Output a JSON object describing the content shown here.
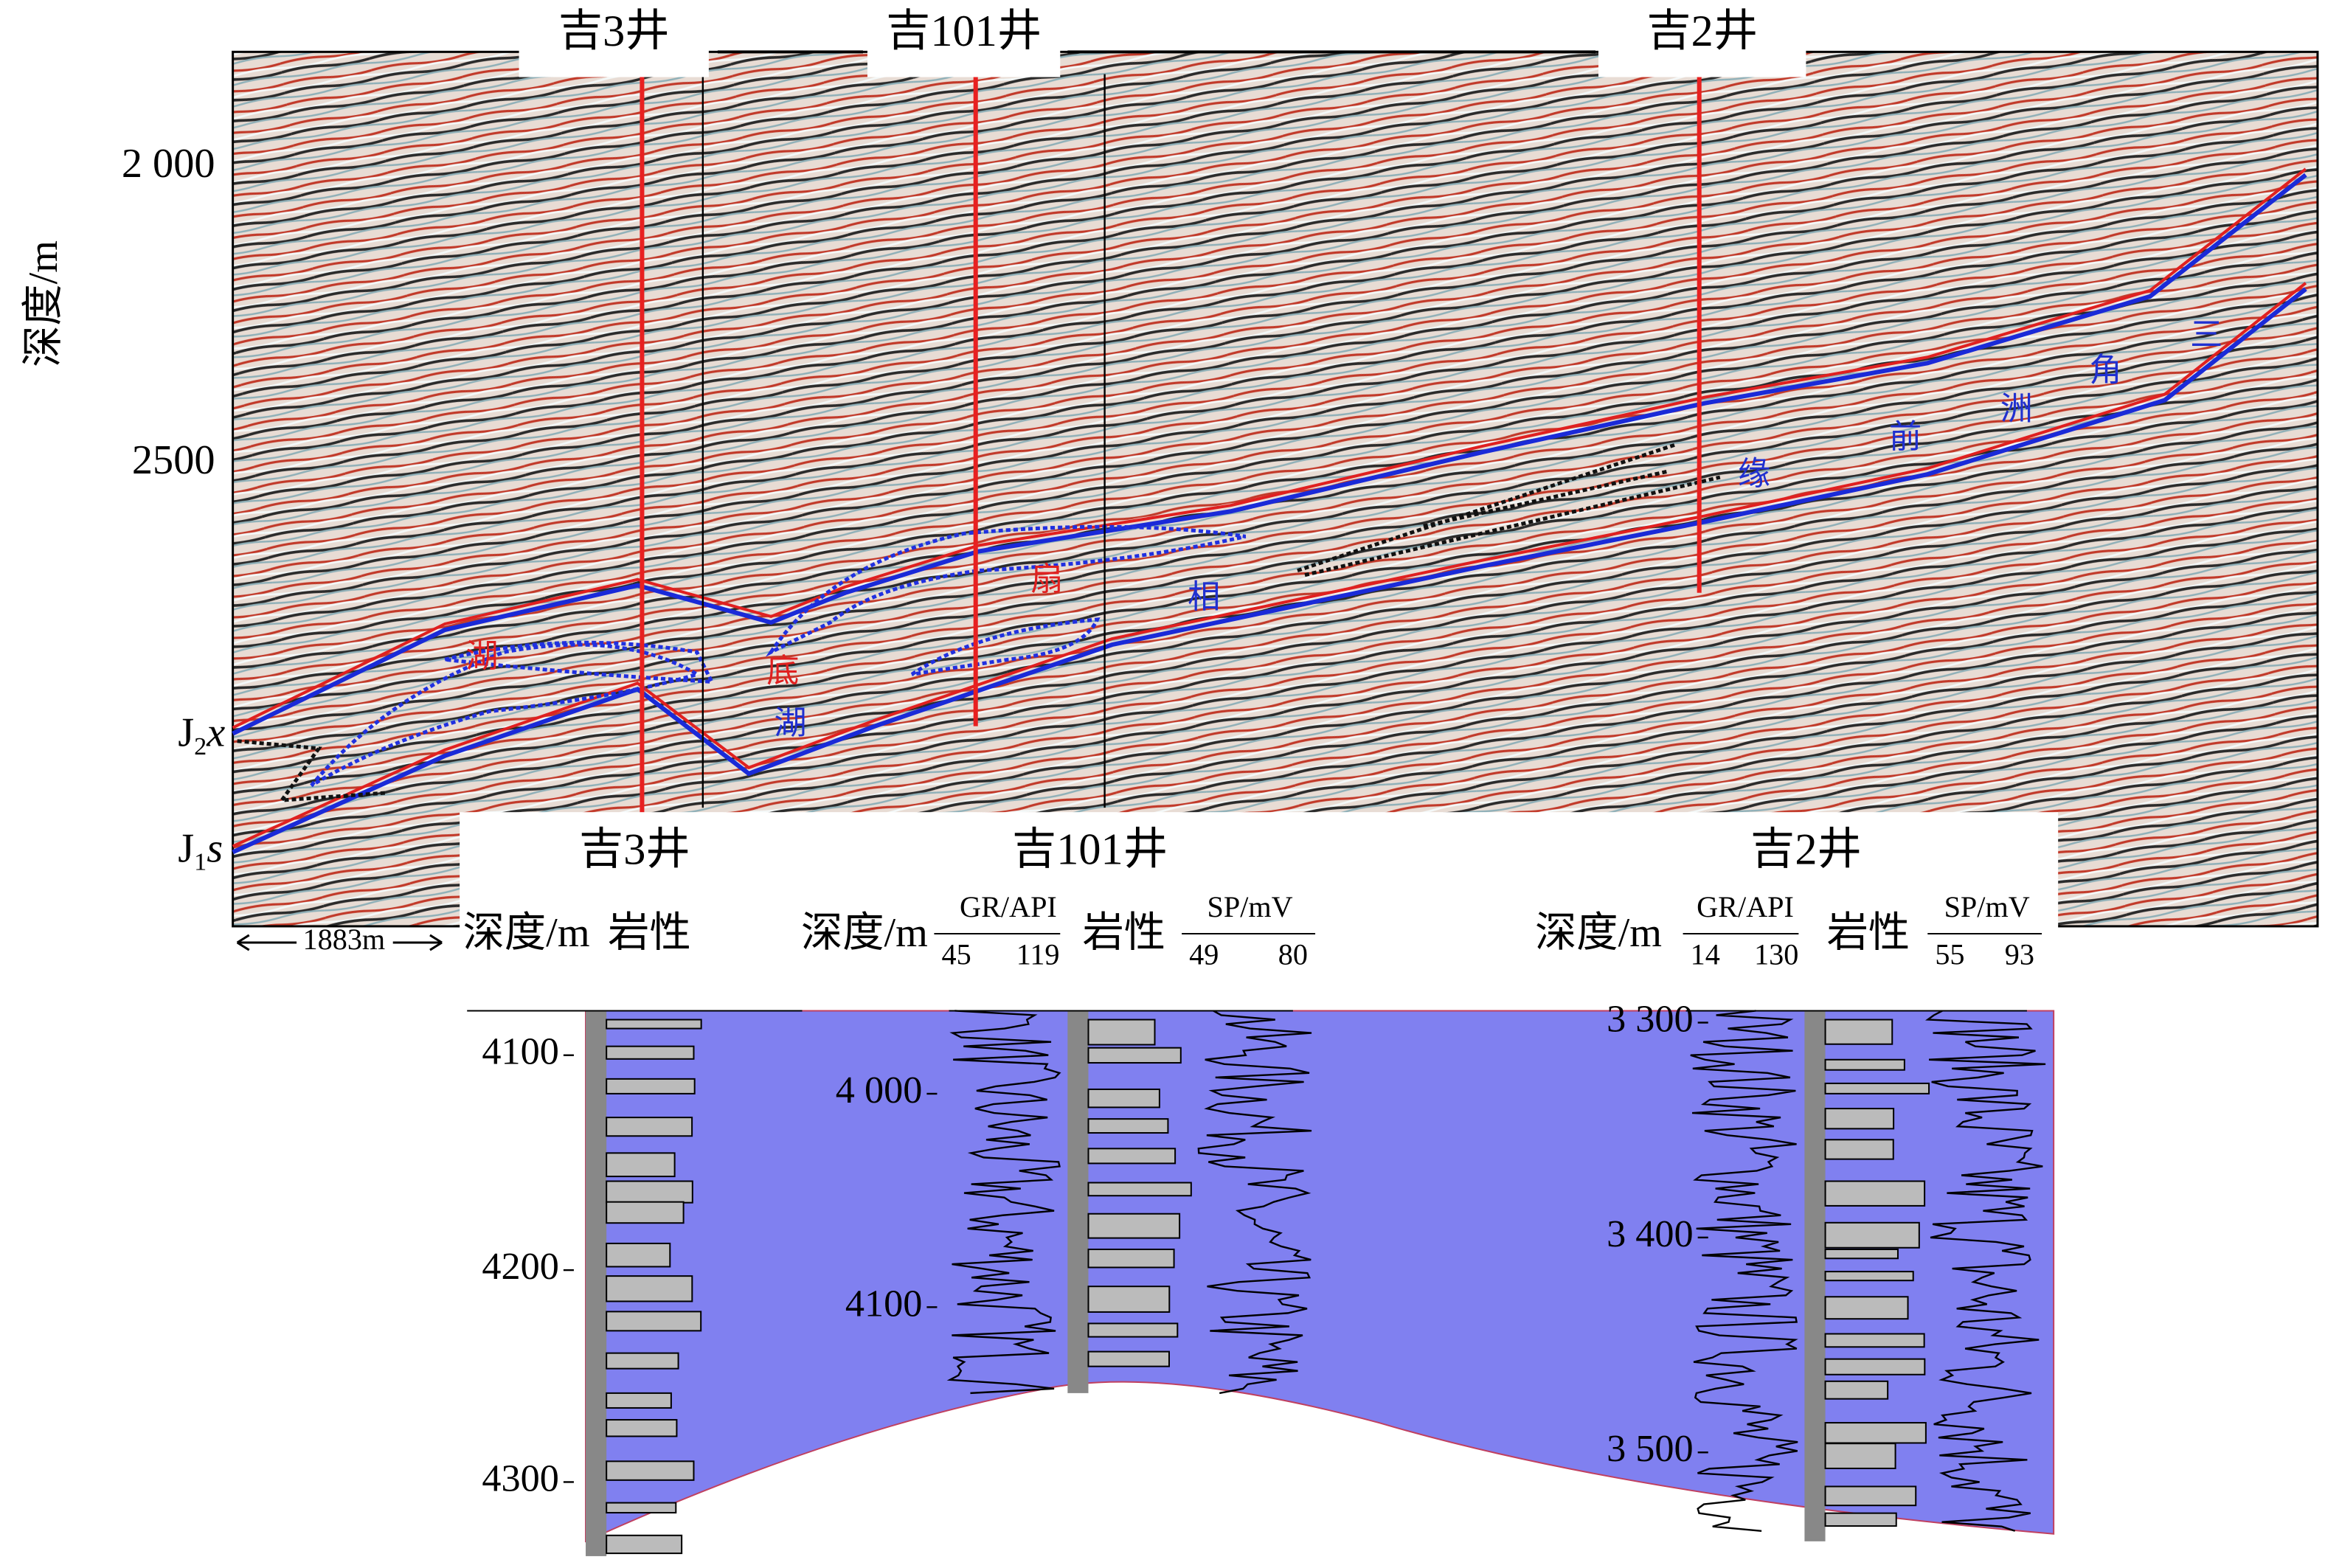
{
  "section": {
    "y_axis_label": "深度/m",
    "depth_ticks": [
      "2 000",
      "2500"
    ],
    "wells": [
      "吉3井",
      "吉101井",
      "吉2井"
    ],
    "horizons": [
      {
        "main": "J",
        "sub": "2",
        "suffix": "x"
      },
      {
        "main": "J",
        "sub": "1",
        "suffix": "s"
      }
    ],
    "scale_bar": "1883m",
    "facies_labels": [
      "湖",
      "底",
      "扇",
      "湖",
      "相",
      "缘",
      "前",
      "洲",
      "角",
      "三"
    ]
  },
  "logs": [
    {
      "well": "吉3井",
      "depth_header": "深度/m",
      "lith_header": "岩性",
      "depth_ticks": [
        "4100",
        "4200",
        "4300"
      ]
    },
    {
      "well": "吉101井",
      "depth_header": "深度/m",
      "lith_header": "岩性",
      "gr": {
        "label": "GR/API",
        "min": 45,
        "max": 119
      },
      "sp": {
        "label": "SP/mV",
        "min": 49,
        "max": 80
      },
      "depth_ticks": [
        "4 000",
        "4100"
      ]
    },
    {
      "well": "吉2井",
      "depth_header": "深度/m",
      "lith_header": "岩性",
      "gr": {
        "label": "GR/API",
        "min": 14,
        "max": 130
      },
      "sp": {
        "label": "SP/mV",
        "min": 55,
        "max": 93
      },
      "depth_ticks": [
        "3 300",
        "3 400",
        "3 500"
      ]
    }
  ]
}
